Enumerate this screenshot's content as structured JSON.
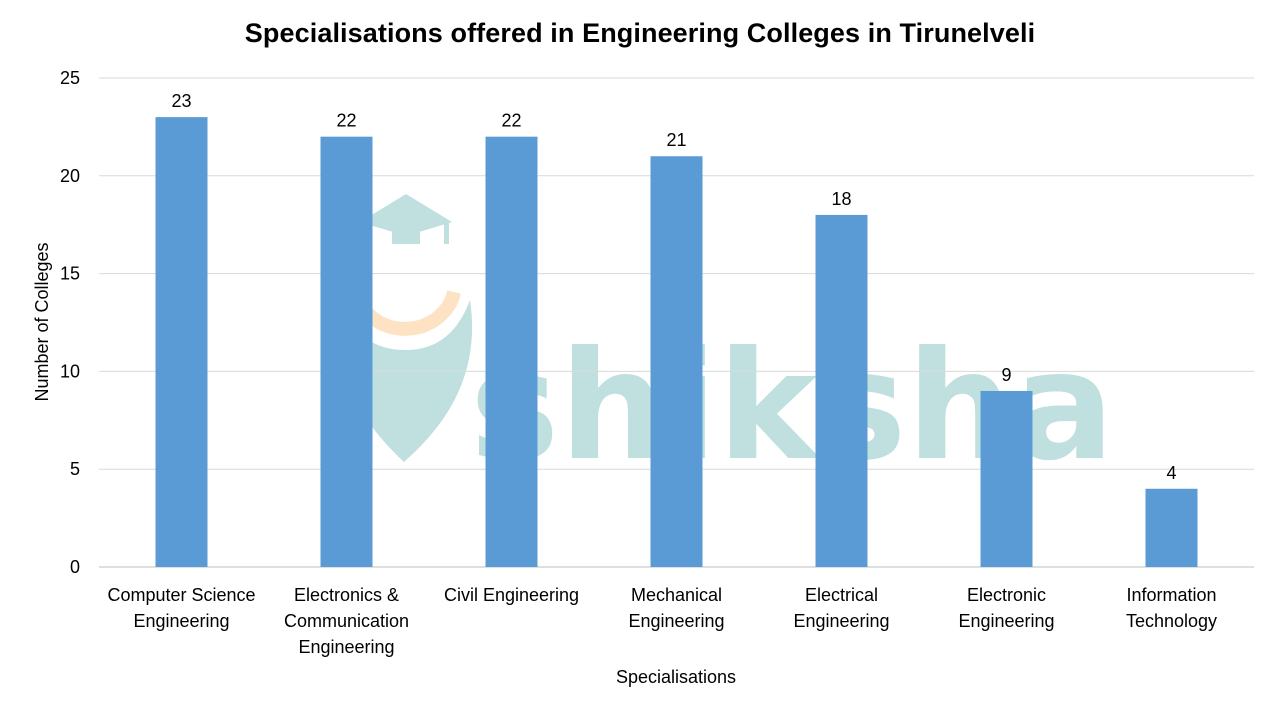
{
  "chart_data": {
    "type": "bar",
    "title": "Specialisations offered in Engineering Colleges in Tirunelveli",
    "xlabel": "Specialisations",
    "ylabel": "Number of Colleges",
    "categories": [
      [
        "Computer Science",
        "Engineering"
      ],
      [
        "Electronics &",
        "Communication",
        "Engineering"
      ],
      [
        "Civil Engineering"
      ],
      [
        "Mechanical",
        "Engineering"
      ],
      [
        "Electrical",
        "Engineering"
      ],
      [
        "Electronic",
        "Engineering"
      ],
      [
        "Information",
        "Technology"
      ]
    ],
    "values": [
      23,
      22,
      22,
      21,
      18,
      9,
      4
    ],
    "data_labels": [
      "23",
      "22",
      "22",
      "21",
      "18",
      "9",
      "4"
    ],
    "ylim": [
      0,
      25
    ],
    "y_ticks": [
      0,
      5,
      10,
      15,
      20,
      25
    ],
    "grid": true,
    "legend": "none",
    "bar_color": "#5b9bd5",
    "gridline_color": "#d9d9d9"
  },
  "watermark": {
    "text": "shiksha",
    "colors": {
      "teal": "#bfe0df",
      "orange": "#fde3c4"
    }
  }
}
